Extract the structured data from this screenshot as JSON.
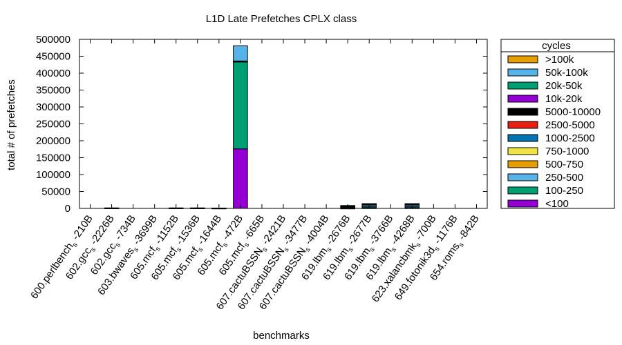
{
  "chart_data": {
    "type": "bar",
    "stacked": true,
    "title": "L1D Late Prefetches CPLX class",
    "xlabel": "benchmarks",
    "ylabel": "total # of prefetches",
    "ylim": [
      0,
      500000
    ],
    "yticks": [
      "0",
      "50000",
      "100000",
      "150000",
      "200000",
      "250000",
      "300000",
      "350000",
      "400000",
      "450000",
      "500000"
    ],
    "legend": {
      "title": "cycles",
      "placement": "right-outside"
    },
    "categories": [
      {
        "base": "600.perlbench",
        "sub": "s",
        "suffix": "-210B"
      },
      {
        "base": "602.gcc",
        "sub": "s",
        "suffix": "-2226B"
      },
      {
        "base": "602.gcc",
        "sub": "s",
        "suffix": "-734B"
      },
      {
        "base": "603.bwaves",
        "sub": "s",
        "suffix": "-3699B"
      },
      {
        "base": "605.mcf",
        "sub": "s",
        "suffix": "-1152B"
      },
      {
        "base": "605.mcf",
        "sub": "s",
        "suffix": "-1536B"
      },
      {
        "base": "605.mcf",
        "sub": "s",
        "suffix": "-1644B"
      },
      {
        "base": "605.mcf",
        "sub": "s",
        "suffix": "-472B"
      },
      {
        "base": "605.mcf",
        "sub": "s",
        "suffix": "-665B"
      },
      {
        "base": "607.cactuBSSN",
        "sub": "s",
        "suffix": "-2421B"
      },
      {
        "base": "607.cactuBSSN",
        "sub": "s",
        "suffix": "-3477B"
      },
      {
        "base": "607.cactuBSSN",
        "sub": "s",
        "suffix": "-4004B"
      },
      {
        "base": "619.lbm",
        "sub": "s",
        "suffix": "-2676B"
      },
      {
        "base": "619.lbm",
        "sub": "s",
        "suffix": "-2677B"
      },
      {
        "base": "619.lbm",
        "sub": "s",
        "suffix": "-3766B"
      },
      {
        "base": "619.lbm",
        "sub": "s",
        "suffix": "-4268B"
      },
      {
        "base": "623.xalancbmk",
        "sub": "s",
        "suffix": "-700B"
      },
      {
        "base": "649.fotonik3d",
        "sub": "s",
        "suffix": "-1176B"
      },
      {
        "base": "654.roms",
        "sub": "s",
        "suffix": "-842B"
      }
    ],
    "series": [
      {
        "name": "<100",
        "color": "#9400d3",
        "values": [
          0,
          0,
          0,
          0,
          0,
          0,
          0,
          176000,
          0,
          0,
          0,
          0,
          1000,
          2000,
          0,
          2000,
          0,
          0,
          0
        ]
      },
      {
        "name": "100-250",
        "color": "#009e73",
        "values": [
          0,
          0,
          0,
          0,
          0,
          0,
          0,
          257000,
          0,
          0,
          0,
          0,
          2000,
          3000,
          0,
          3000,
          0,
          0,
          0
        ]
      },
      {
        "name": "250-500",
        "color": "#56b4e9",
        "values": [
          0,
          0,
          0,
          0,
          0,
          0,
          0,
          0,
          0,
          0,
          0,
          0,
          3000,
          5000,
          0,
          5000,
          0,
          0,
          0
        ]
      },
      {
        "name": "500-750",
        "color": "#e69f00",
        "values": [
          0,
          0,
          0,
          0,
          0,
          0,
          0,
          0,
          0,
          0,
          0,
          0,
          0,
          0,
          0,
          0,
          0,
          0,
          0
        ]
      },
      {
        "name": "750-1000",
        "color": "#f0e442",
        "values": [
          0,
          0,
          0,
          0,
          0,
          0,
          0,
          0,
          0,
          0,
          0,
          0,
          0,
          0,
          0,
          0,
          0,
          0,
          0
        ]
      },
      {
        "name": "1000-2500",
        "color": "#0072b2",
        "values": [
          0,
          0,
          0,
          0,
          0,
          0,
          0,
          0,
          0,
          0,
          0,
          0,
          1000,
          2000,
          0,
          2000,
          0,
          0,
          0
        ]
      },
      {
        "name": "2500-5000",
        "color": "#e51e10",
        "values": [
          0,
          0,
          0,
          0,
          0,
          0,
          0,
          0,
          0,
          0,
          0,
          0,
          0,
          0,
          0,
          0,
          0,
          0,
          0
        ]
      },
      {
        "name": "5000-10000",
        "color": "#000000",
        "values": [
          0,
          1500,
          0,
          0,
          1500,
          1500,
          1000,
          3000,
          0,
          0,
          0,
          0,
          1500,
          2000,
          0,
          2000,
          0,
          0,
          0
        ]
      },
      {
        "name": "10k-20k",
        "color": "#9400d3",
        "values": [
          0,
          0,
          0,
          0,
          0,
          0,
          0,
          0,
          0,
          0,
          0,
          0,
          0,
          0,
          0,
          0,
          0,
          0,
          0
        ]
      },
      {
        "name": "20k-50k",
        "color": "#009e73",
        "values": [
          0,
          0,
          0,
          0,
          0,
          0,
          0,
          0,
          0,
          0,
          0,
          0,
          0,
          0,
          0,
          0,
          0,
          0,
          0
        ]
      },
      {
        "name": "50k-100k",
        "color": "#56b4e9",
        "values": [
          0,
          0,
          0,
          0,
          0,
          0,
          0,
          45000,
          0,
          0,
          0,
          0,
          0,
          0,
          0,
          0,
          0,
          0,
          0
        ]
      },
      {
        "name": ">100k",
        "color": "#e69f00",
        "values": [
          0,
          0,
          0,
          0,
          0,
          0,
          0,
          0,
          0,
          0,
          0,
          0,
          0,
          0,
          0,
          0,
          0,
          0,
          0
        ]
      }
    ]
  }
}
